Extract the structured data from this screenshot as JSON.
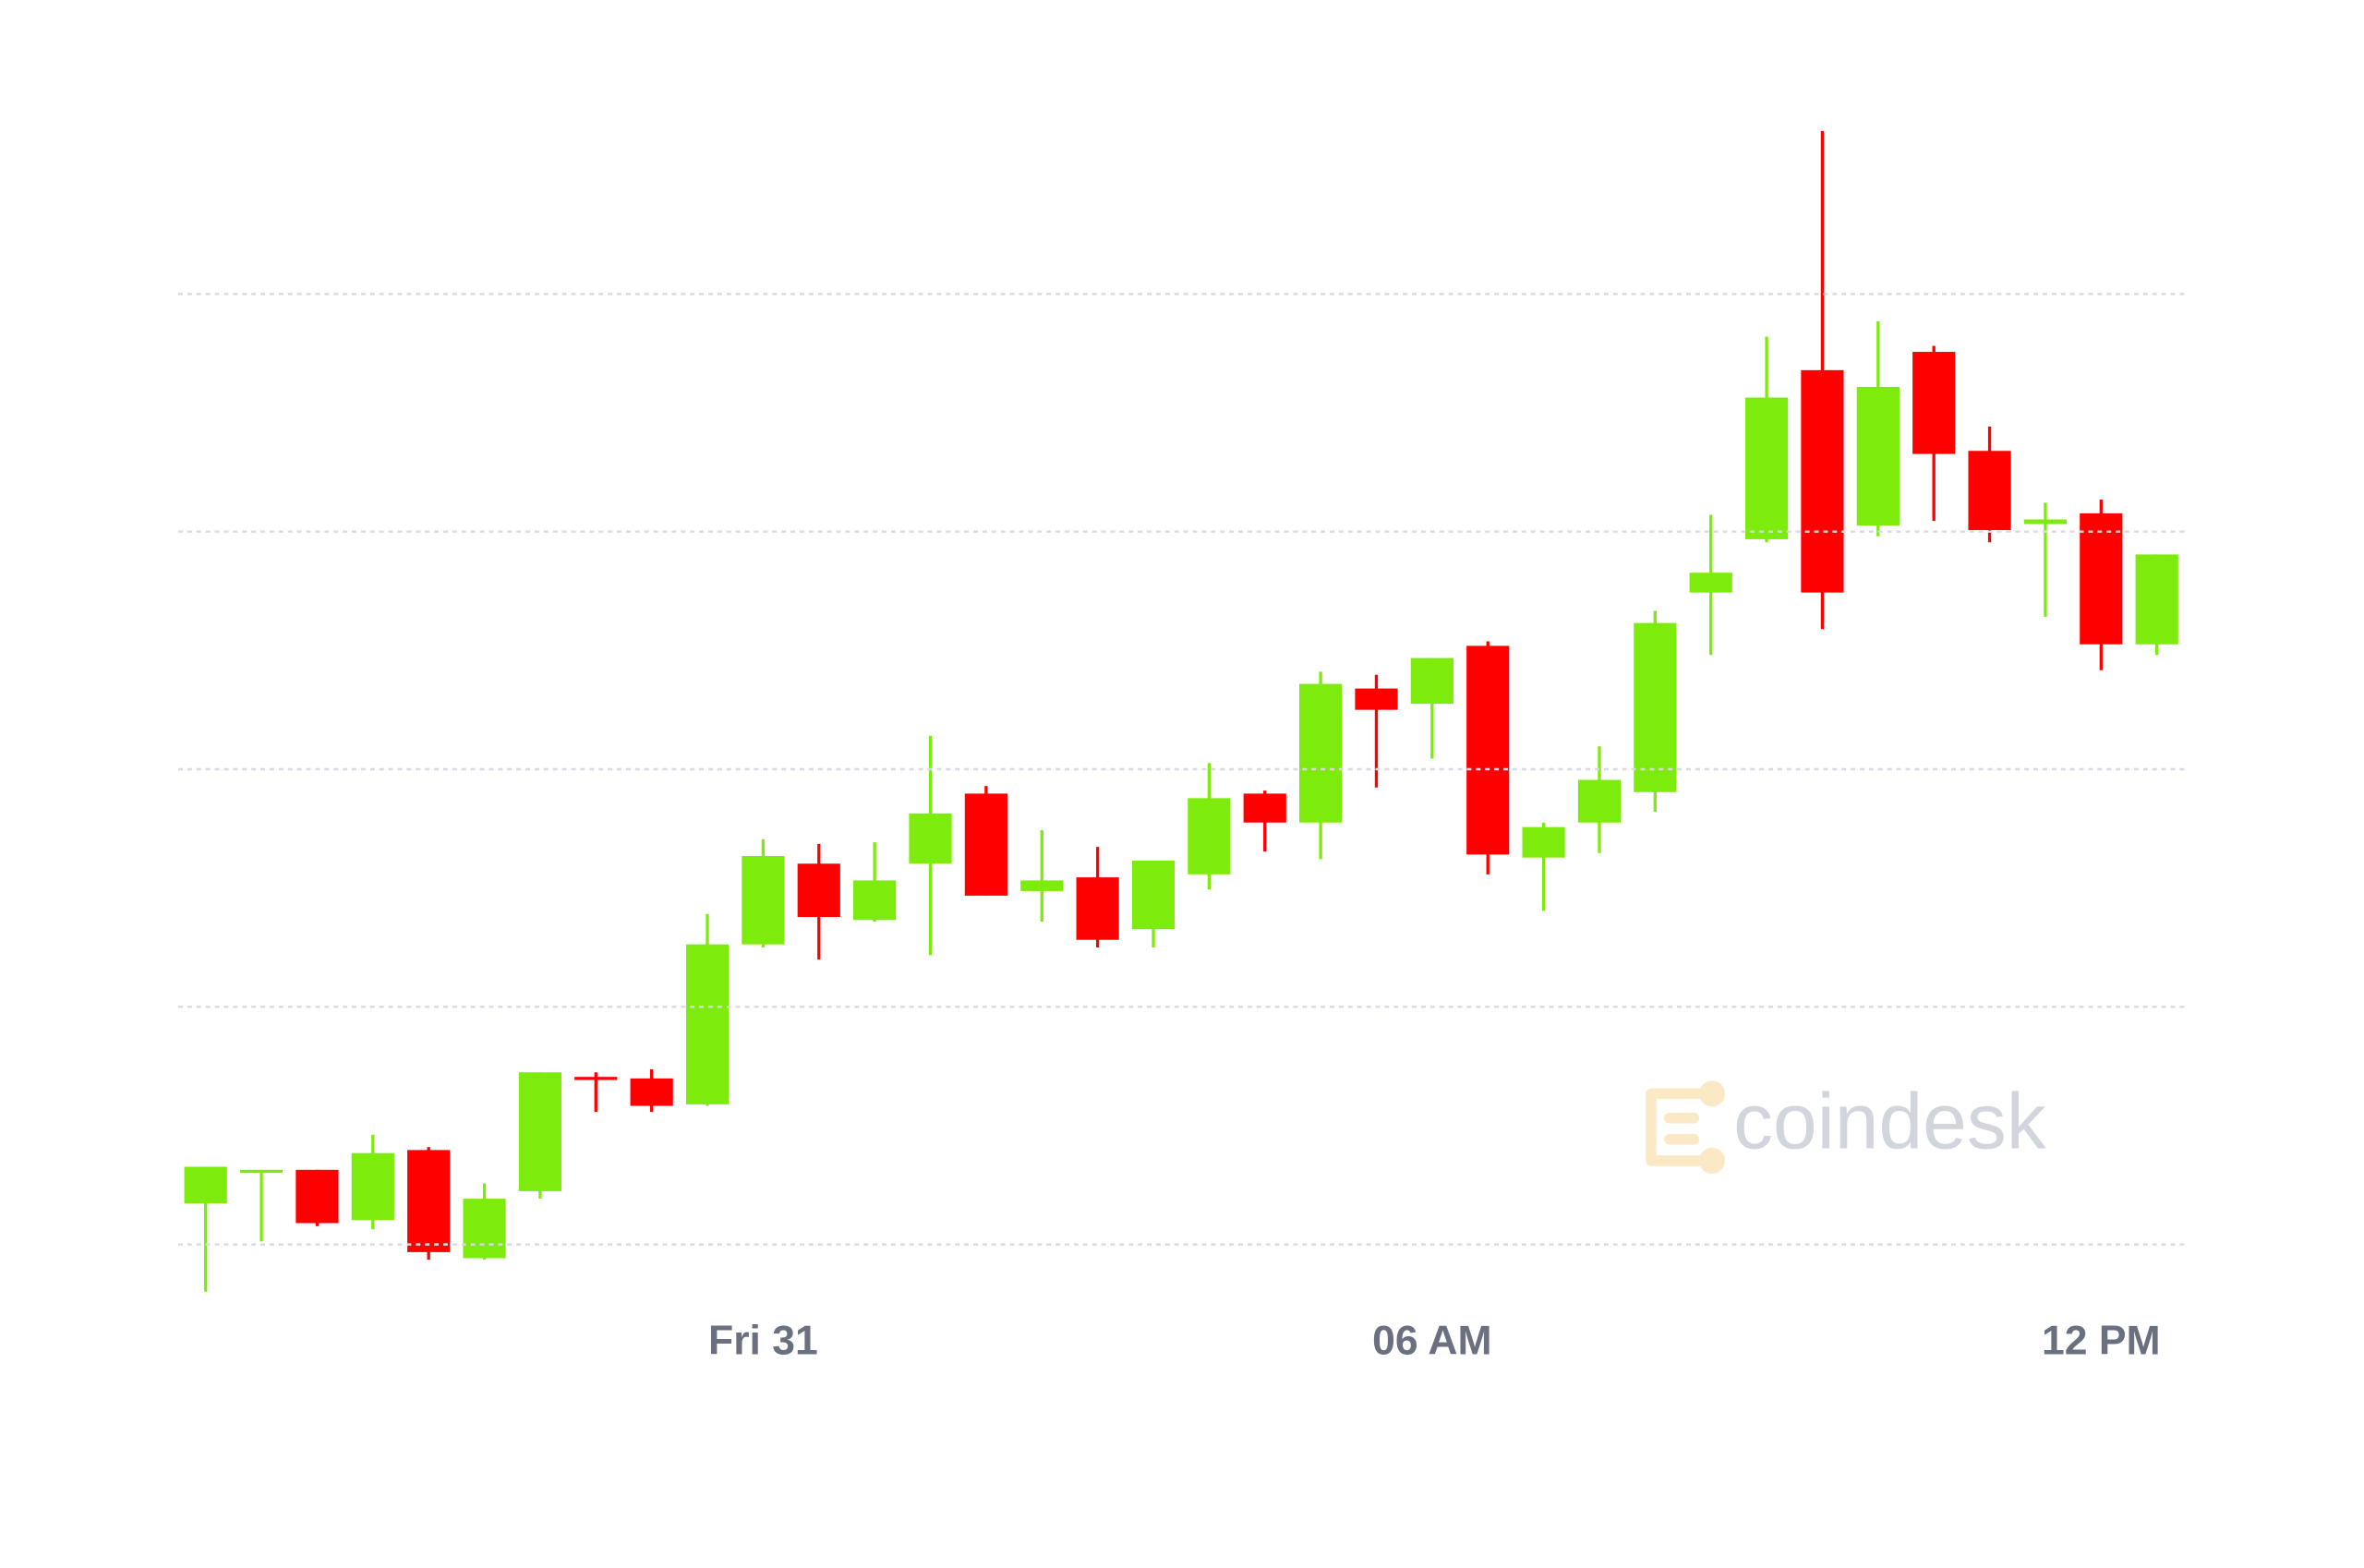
{
  "chart_data": {
    "type": "candlestick",
    "categories": [
      null,
      null,
      null,
      null,
      null,
      null,
      null,
      null,
      null,
      null,
      "Fri 31",
      null,
      null,
      null,
      null,
      null,
      null,
      null,
      null,
      null,
      null,
      null,
      "06 AM",
      null,
      null,
      null,
      null,
      null,
      null,
      null,
      null,
      null,
      null,
      null,
      "12 PM",
      null
    ],
    "open": [
      27,
      47,
      49,
      16,
      62,
      -9,
      35,
      110,
      109,
      92,
      197,
      250,
      213,
      250,
      296,
      232,
      241,
      207,
      243,
      296,
      277,
      365,
      355,
      393,
      254,
      277,
      297,
      428,
      463,
      574,
      472,
      586,
      521,
      473,
      480,
      394
    ],
    "high": [
      51,
      49,
      49,
      72,
      64,
      40,
      113,
      113,
      115,
      217,
      266,
      263,
      264,
      334,
      301,
      272,
      261,
      252,
      316,
      298,
      376,
      374,
      385,
      396,
      277,
      327,
      416,
      479,
      596,
      731,
      606,
      590,
      537,
      487,
      489,
      453
    ],
    "low": [
      -31,
      2,
      12,
      10,
      -10,
      -10,
      30,
      87,
      87,
      91,
      195,
      187,
      212,
      190,
      229,
      212,
      195,
      195,
      233,
      258,
      253,
      300,
      319,
      243,
      219,
      257,
      284,
      387,
      461,
      404,
      465,
      475,
      461,
      412,
      377,
      387
    ],
    "close": [
      51,
      49,
      14,
      60,
      -5,
      30,
      113,
      108,
      91,
      197,
      255,
      215,
      239,
      283,
      229,
      239,
      200,
      252,
      293,
      277,
      368,
      351,
      385,
      256,
      274,
      305,
      408,
      441,
      556,
      428,
      563,
      519,
      469,
      476,
      394,
      453
    ],
    "up_color": "#7deb0c",
    "down_color": "#ff0000",
    "grid_color": "#d9d9e6",
    "ylim": [
      -40,
      780
    ],
    "yticks": [
      0,
      156,
      312,
      468,
      624
    ],
    "grid": true,
    "watermark": "coindesk"
  }
}
